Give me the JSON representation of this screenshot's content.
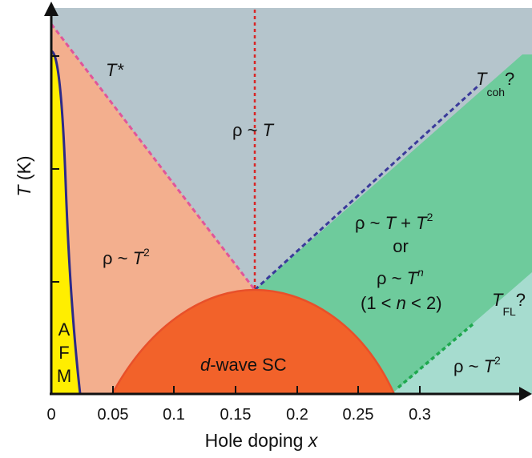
{
  "axes": {
    "xlabel_text": "Hole doping ",
    "xlabel_var": "x",
    "ylabel_var": "T",
    "ylabel_unit": " (K)",
    "x_ticks": [
      "0",
      "0.05",
      "0.1",
      "0.15",
      "0.2",
      "0.25",
      "0.3"
    ]
  },
  "regions": {
    "linear": {
      "rho": "ρ ~ ",
      "var": "T"
    },
    "quadratic_left": {
      "rho": "ρ ~ ",
      "var": "T",
      "exp": "2"
    },
    "mixed_line1": {
      "rho": "ρ ~ ",
      "var": "T",
      "plus": " + ",
      "var2": "T",
      "exp": "2"
    },
    "or": "or",
    "mixed_line2": {
      "rho": "ρ ~ ",
      "var": "T",
      "exp": "n"
    },
    "mixed_line3": {
      "open": "(1 < ",
      "var": "n",
      "close": " < 2)"
    },
    "quadratic_right": {
      "rho": "ρ ~ ",
      "var": "T",
      "exp": "2"
    },
    "sc": {
      "prefix": "d",
      "rest": "-wave SC"
    },
    "afm": [
      "A",
      "F",
      "M"
    ]
  },
  "crossovers": {
    "pseudogap": "T*",
    "coherence": {
      "var": "T",
      "sub": "coh",
      "q": "?"
    },
    "fermi_liquid": {
      "var": "T",
      "sub": "FL",
      "q": "?"
    }
  },
  "colors": {
    "linear_region": "#b5c5cc",
    "pseudogap_region": "#f3af8e",
    "afm_region": "#ffee00",
    "sc_dome": "#f2622a",
    "strange_region": "#6ecb9c",
    "fl_region": "#a6dccf",
    "pseudogap_line": "#e0559a",
    "coherence_line": "#3a3a9a",
    "fl_line": "#1ea84e",
    "qcp_line": "#d82626",
    "afm_line": "#2b2a8a",
    "afm_label": "#e8332a",
    "pseudogap_label": "#e0559a",
    "coherence_label": "#3a3a9a",
    "fl_label": "#1ea84e"
  }
}
